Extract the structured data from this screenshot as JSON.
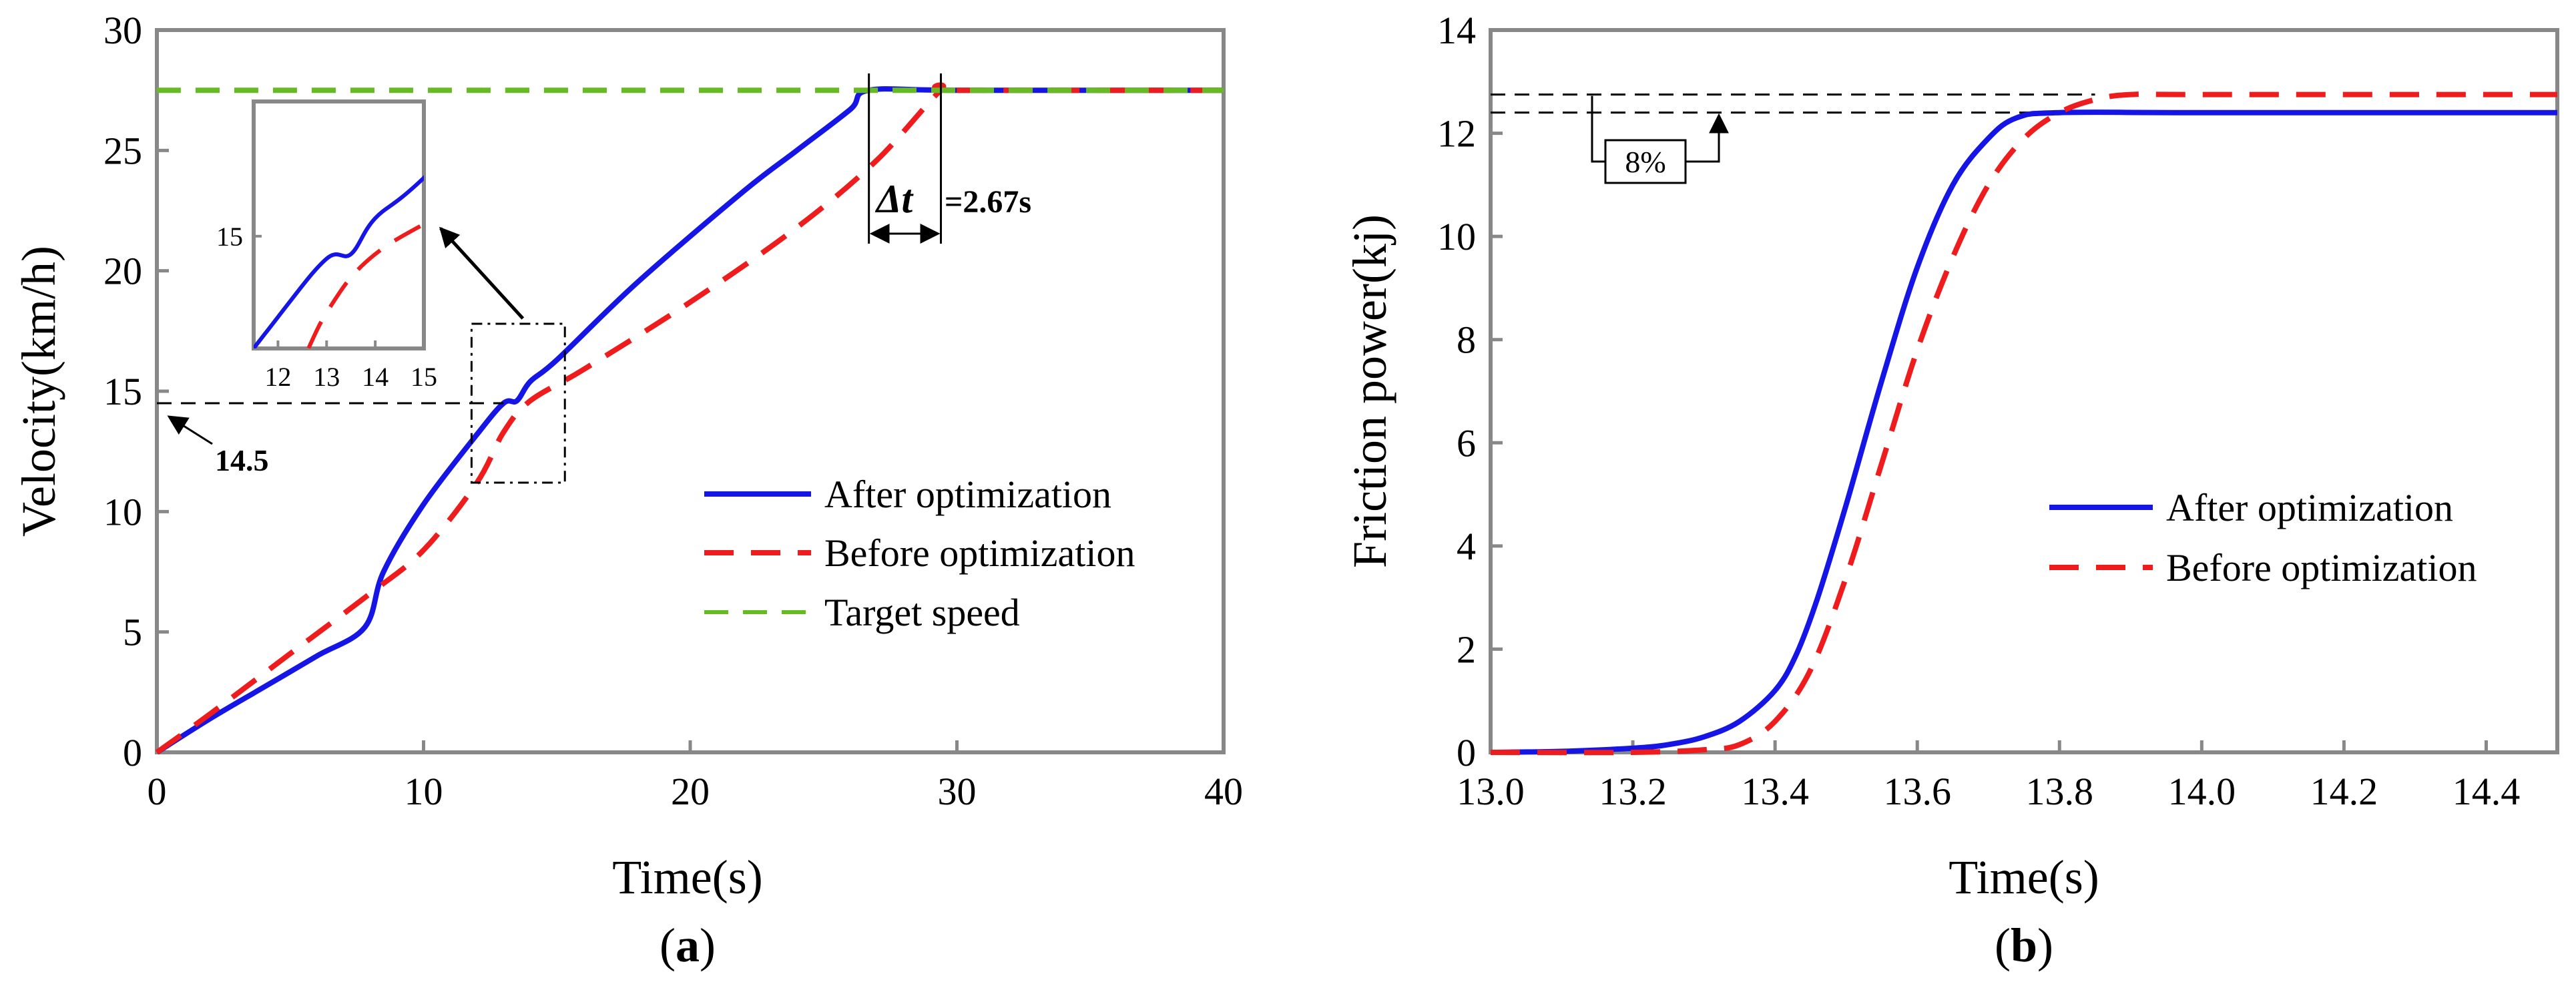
{
  "chart_data": [
    {
      "type": "line",
      "panel_label": "(a)",
      "panel_letter": "a",
      "xlabel": "Time(s)",
      "ylabel": "Velocity(km/h)",
      "xlim": [
        0,
        40
      ],
      "ylim": [
        0,
        30
      ],
      "xticks": [
        0,
        10,
        20,
        30,
        40
      ],
      "yticks": [
        0,
        5,
        10,
        15,
        20,
        25,
        30
      ],
      "grid": false,
      "legend_position": "lower-right",
      "series": [
        {
          "name": "After optimization",
          "color": "#1515e6",
          "dash": "solid",
          "x": [
            0,
            2,
            4,
            6,
            7.8,
            8.5,
            10,
            12,
            13,
            13.5,
            14,
            15,
            18,
            22,
            24,
            26,
            26.7,
            30,
            40
          ],
          "y": [
            0,
            1.4,
            2.7,
            4.0,
            5.2,
            7.5,
            10.3,
            13.2,
            14.5,
            14.6,
            15.4,
            16.3,
            19.5,
            23.3,
            25.0,
            26.7,
            27.5,
            27.5,
            27.5
          ]
        },
        {
          "name": "Before optimization",
          "color": "#ee1c1c",
          "dash": "dashed",
          "x": [
            0,
            2,
            5,
            8,
            10,
            12,
            13,
            14,
            16,
            20,
            24,
            27,
            29.4,
            30,
            40
          ],
          "y": [
            0,
            1.6,
            4.1,
            6.6,
            8.4,
            11.2,
            13.3,
            14.6,
            15.9,
            18.7,
            21.8,
            24.6,
            27.5,
            27.5,
            27.5
          ]
        },
        {
          "name": "Target speed",
          "color": "#66bb22",
          "dash": "dashed",
          "x": [
            0,
            40
          ],
          "y": [
            27.5,
            27.5
          ]
        }
      ],
      "inset": {
        "xlim": [
          11.5,
          15
        ],
        "ylim": [
          12.5,
          18
        ],
        "xticks": [
          12,
          13,
          14,
          15
        ],
        "yticks": [
          15
        ],
        "source_box": {
          "x": [
            11.8,
            15.3
          ],
          "y": [
            11.2,
            17.8
          ]
        }
      },
      "annotations": {
        "level_value": 14.5,
        "level_label": "14.5",
        "delta_t_symbol": "Δt",
        "delta_t_value": "=2.67s",
        "delta_t_range": [
          26.7,
          29.4
        ]
      }
    },
    {
      "type": "line",
      "panel_label": "(b)",
      "panel_letter": "b",
      "xlabel": "Time(s)",
      "ylabel": "Friction power(kj)",
      "xlim": [
        13.0,
        14.5
      ],
      "ylim": [
        0,
        14
      ],
      "xticks": [
        13.0,
        13.2,
        13.4,
        13.6,
        13.8,
        14.0,
        14.2,
        14.4
      ],
      "xtick_labels": [
        "13.0",
        "13.2",
        "13.4",
        "13.6",
        "13.8",
        "14.0",
        "14.2",
        "14.4"
      ],
      "yticks": [
        0,
        2,
        4,
        6,
        8,
        10,
        12,
        14
      ],
      "grid": false,
      "legend_position": "lower-right",
      "series": [
        {
          "name": "After optimization",
          "color": "#1515e6",
          "dash": "solid",
          "x": [
            13.0,
            13.1,
            13.2,
            13.25,
            13.3,
            13.35,
            13.4,
            13.43,
            13.46,
            13.5,
            13.55,
            13.6,
            13.65,
            13.7,
            13.74,
            13.8,
            14.0,
            14.5
          ],
          "y": [
            0.0,
            0.02,
            0.08,
            0.15,
            0.3,
            0.6,
            1.2,
            1.9,
            3.0,
            4.8,
            7.2,
            9.4,
            11.0,
            11.9,
            12.3,
            12.4,
            12.4,
            12.4
          ]
        },
        {
          "name": "Before optimization",
          "color": "#ee1c1c",
          "dash": "dashed",
          "x": [
            13.0,
            13.2,
            13.3,
            13.35,
            13.4,
            13.45,
            13.5,
            13.55,
            13.6,
            13.65,
            13.7,
            13.75,
            13.8,
            13.85,
            13.9,
            14.0,
            14.5
          ],
          "y": [
            0.0,
            0.0,
            0.05,
            0.15,
            0.6,
            1.6,
            3.4,
            5.6,
            7.8,
            9.6,
            11.0,
            11.9,
            12.4,
            12.65,
            12.75,
            12.75,
            12.75
          ]
        }
      ],
      "annotations": {
        "levels": [
          12.75,
          12.4
        ],
        "percent_label": "8%"
      }
    }
  ]
}
